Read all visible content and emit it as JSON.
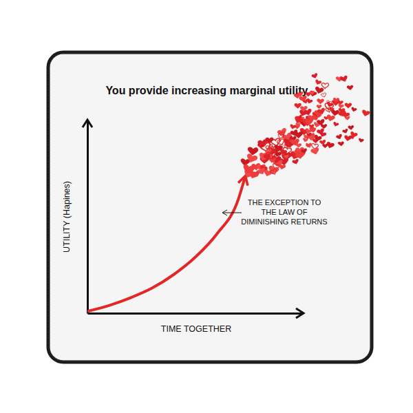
{
  "chart_data": {
    "type": "line",
    "title": "You provide increasing marginal utility.",
    "x_label": "TIME TOGETHER",
    "y_label": "UTILITY (Hapines)",
    "annotation": [
      "THE EXCEPTION TO",
      "THE LAW OF",
      "DIMINISHING RETURNS"
    ],
    "x": [
      0,
      1,
      2,
      3,
      4,
      5,
      6,
      7,
      7.3
    ],
    "values": [
      0.1,
      0.4,
      0.8,
      1.3,
      2.0,
      2.9,
      4.1,
      5.9,
      7.0
    ],
    "color": "#e32626",
    "xlim": [
      0,
      10
    ],
    "ylim": [
      0,
      10
    ],
    "tick_labels": false
  }
}
